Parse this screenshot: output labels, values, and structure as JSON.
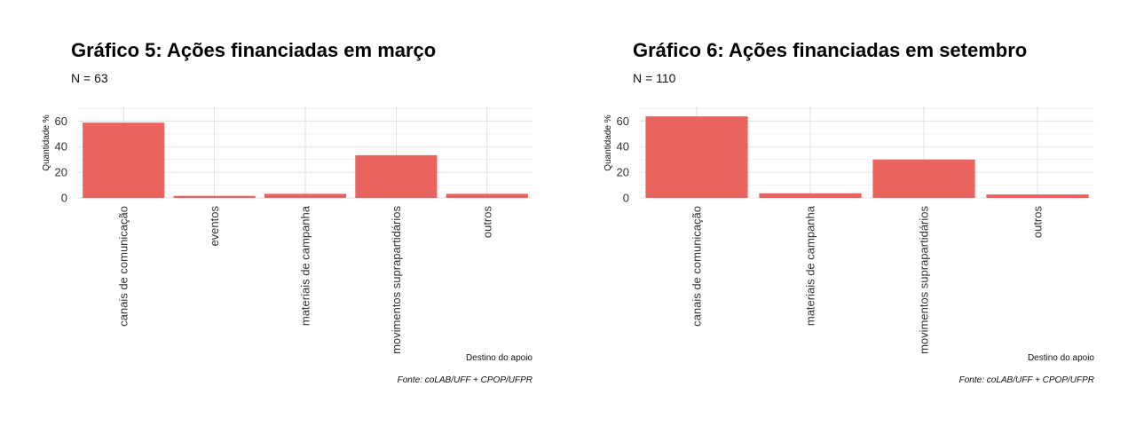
{
  "chart_data": [
    {
      "type": "bar",
      "title": "Gráfico 5: Ações financiadas em março",
      "subtitle": "N = 63",
      "xlabel": "Destino do apoio",
      "ylabel": "Quantidade %",
      "caption": "Fonte: coLAB/UFF + CPOP/UFPR",
      "categories": [
        "canais de comunicação",
        "eventos",
        "materiais de campanha",
        "movimentos suprapartidários",
        "outros"
      ],
      "values": [
        58.7,
        1.6,
        3.2,
        33.3,
        3.2
      ],
      "yticks": [
        0,
        20,
        40,
        60
      ],
      "ylim": [
        0,
        72
      ],
      "grid": true,
      "bar_color": "#e8524d"
    },
    {
      "type": "bar",
      "title": "Gráfico 6: Ações financiadas em setembro",
      "subtitle": "N = 110",
      "xlabel": "Destino do apoio",
      "ylabel": "Quantidade %",
      "caption": "Fonte: coLAB/UFF + CPOP/UFPR",
      "categories": [
        "canais de comunicação",
        "materiais de campanha",
        "movimentos suprapartidários",
        "outros"
      ],
      "values": [
        63.6,
        3.6,
        30.0,
        2.7
      ],
      "yticks": [
        0,
        20,
        40,
        60
      ],
      "ylim": [
        0,
        72
      ],
      "grid": true,
      "bar_color": "#e8524d"
    }
  ]
}
